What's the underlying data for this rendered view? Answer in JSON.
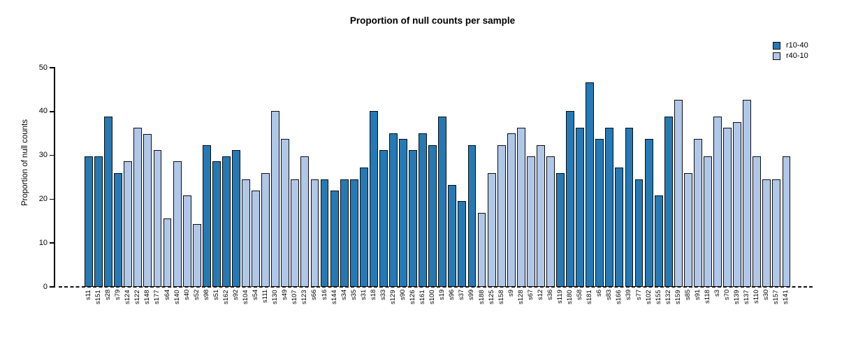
{
  "title": "Proportion of null counts per sample",
  "y_axis_label": "Proportion of null counts",
  "legend": {
    "items": [
      {
        "label": "r10-40",
        "color": "#2579b5"
      },
      {
        "label": "r40-10",
        "color": "#b0c7e8"
      }
    ]
  },
  "colors": {
    "series_dark": "#2579b5",
    "series_light": "#b0c7e8",
    "bar_border": "#0e0e0e",
    "baseline": "#111111"
  },
  "chart_data": {
    "type": "bar",
    "title": "Proportion of null counts per sample",
    "xlabel": "",
    "ylabel": "Proportion of null counts",
    "ylim": [
      0,
      50
    ],
    "yticks": [
      0,
      10,
      20,
      30,
      40,
      50
    ],
    "grid": false,
    "legend_position": "top-right",
    "zero_line": "dashed",
    "series_names": [
      "r10-40",
      "r40-10"
    ],
    "categories": [
      "s11",
      "s151",
      "s28",
      "s79",
      "s124",
      "s122",
      "s148",
      "s177",
      "s64",
      "s140",
      "s40",
      "s52",
      "s98",
      "s51",
      "s162",
      "s92",
      "s104",
      "s54",
      "s111",
      "s130",
      "s49",
      "s107",
      "s123",
      "s66",
      "s16",
      "s144",
      "s34",
      "s35",
      "s31",
      "s18",
      "s33",
      "s129",
      "s90",
      "s126",
      "s161",
      "s100",
      "s19",
      "s96",
      "s37",
      "s99",
      "s188",
      "s125",
      "s158",
      "s9",
      "s128",
      "s67",
      "s12",
      "s36",
      "s119",
      "s180",
      "s58",
      "s181",
      "s6",
      "s83",
      "s166",
      "s39",
      "s77",
      "s102",
      "s155",
      "s132",
      "s159",
      "s85",
      "s91",
      "s118",
      "s3",
      "s70",
      "s139",
      "s137",
      "s110",
      "s30",
      "s157",
      "s141"
    ],
    "values": [
      29.8,
      29.8,
      38.9,
      25.9,
      28.6,
      36.3,
      34.9,
      31.2,
      15.6,
      28.6,
      20.8,
      14.3,
      32.4,
      28.6,
      29.8,
      31.2,
      24.5,
      22.0,
      26.0,
      40.1,
      33.7,
      24.5,
      29.8,
      24.5,
      24.5,
      22.0,
      24.5,
      24.5,
      27.3,
      40.1,
      31.2,
      35.0,
      33.7,
      31.2,
      35.0,
      32.4,
      38.9,
      23.3,
      19.6,
      32.4,
      16.9,
      26.0,
      32.4,
      35.0,
      36.3,
      29.8,
      32.4,
      29.8,
      26.0,
      40.1,
      36.3,
      46.7,
      33.7,
      36.3,
      27.3,
      36.3,
      24.5,
      33.7,
      20.8,
      38.9,
      42.7,
      26.0,
      33.7,
      29.8,
      38.9,
      36.3,
      37.6,
      42.7,
      29.8,
      24.5,
      24.5,
      29.8
    ],
    "series_index": [
      0,
      0,
      0,
      0,
      1,
      1,
      1,
      1,
      1,
      1,
      1,
      1,
      0,
      0,
      0,
      0,
      1,
      1,
      1,
      1,
      1,
      1,
      1,
      1,
      0,
      0,
      0,
      0,
      0,
      0,
      0,
      0,
      0,
      0,
      0,
      0,
      0,
      0,
      0,
      0,
      1,
      1,
      1,
      1,
      1,
      1,
      1,
      1,
      0,
      0,
      0,
      0,
      0,
      0,
      0,
      0,
      0,
      0,
      0,
      0,
      1,
      1,
      1,
      1,
      1,
      1,
      1,
      1,
      1,
      1,
      1,
      1
    ]
  }
}
